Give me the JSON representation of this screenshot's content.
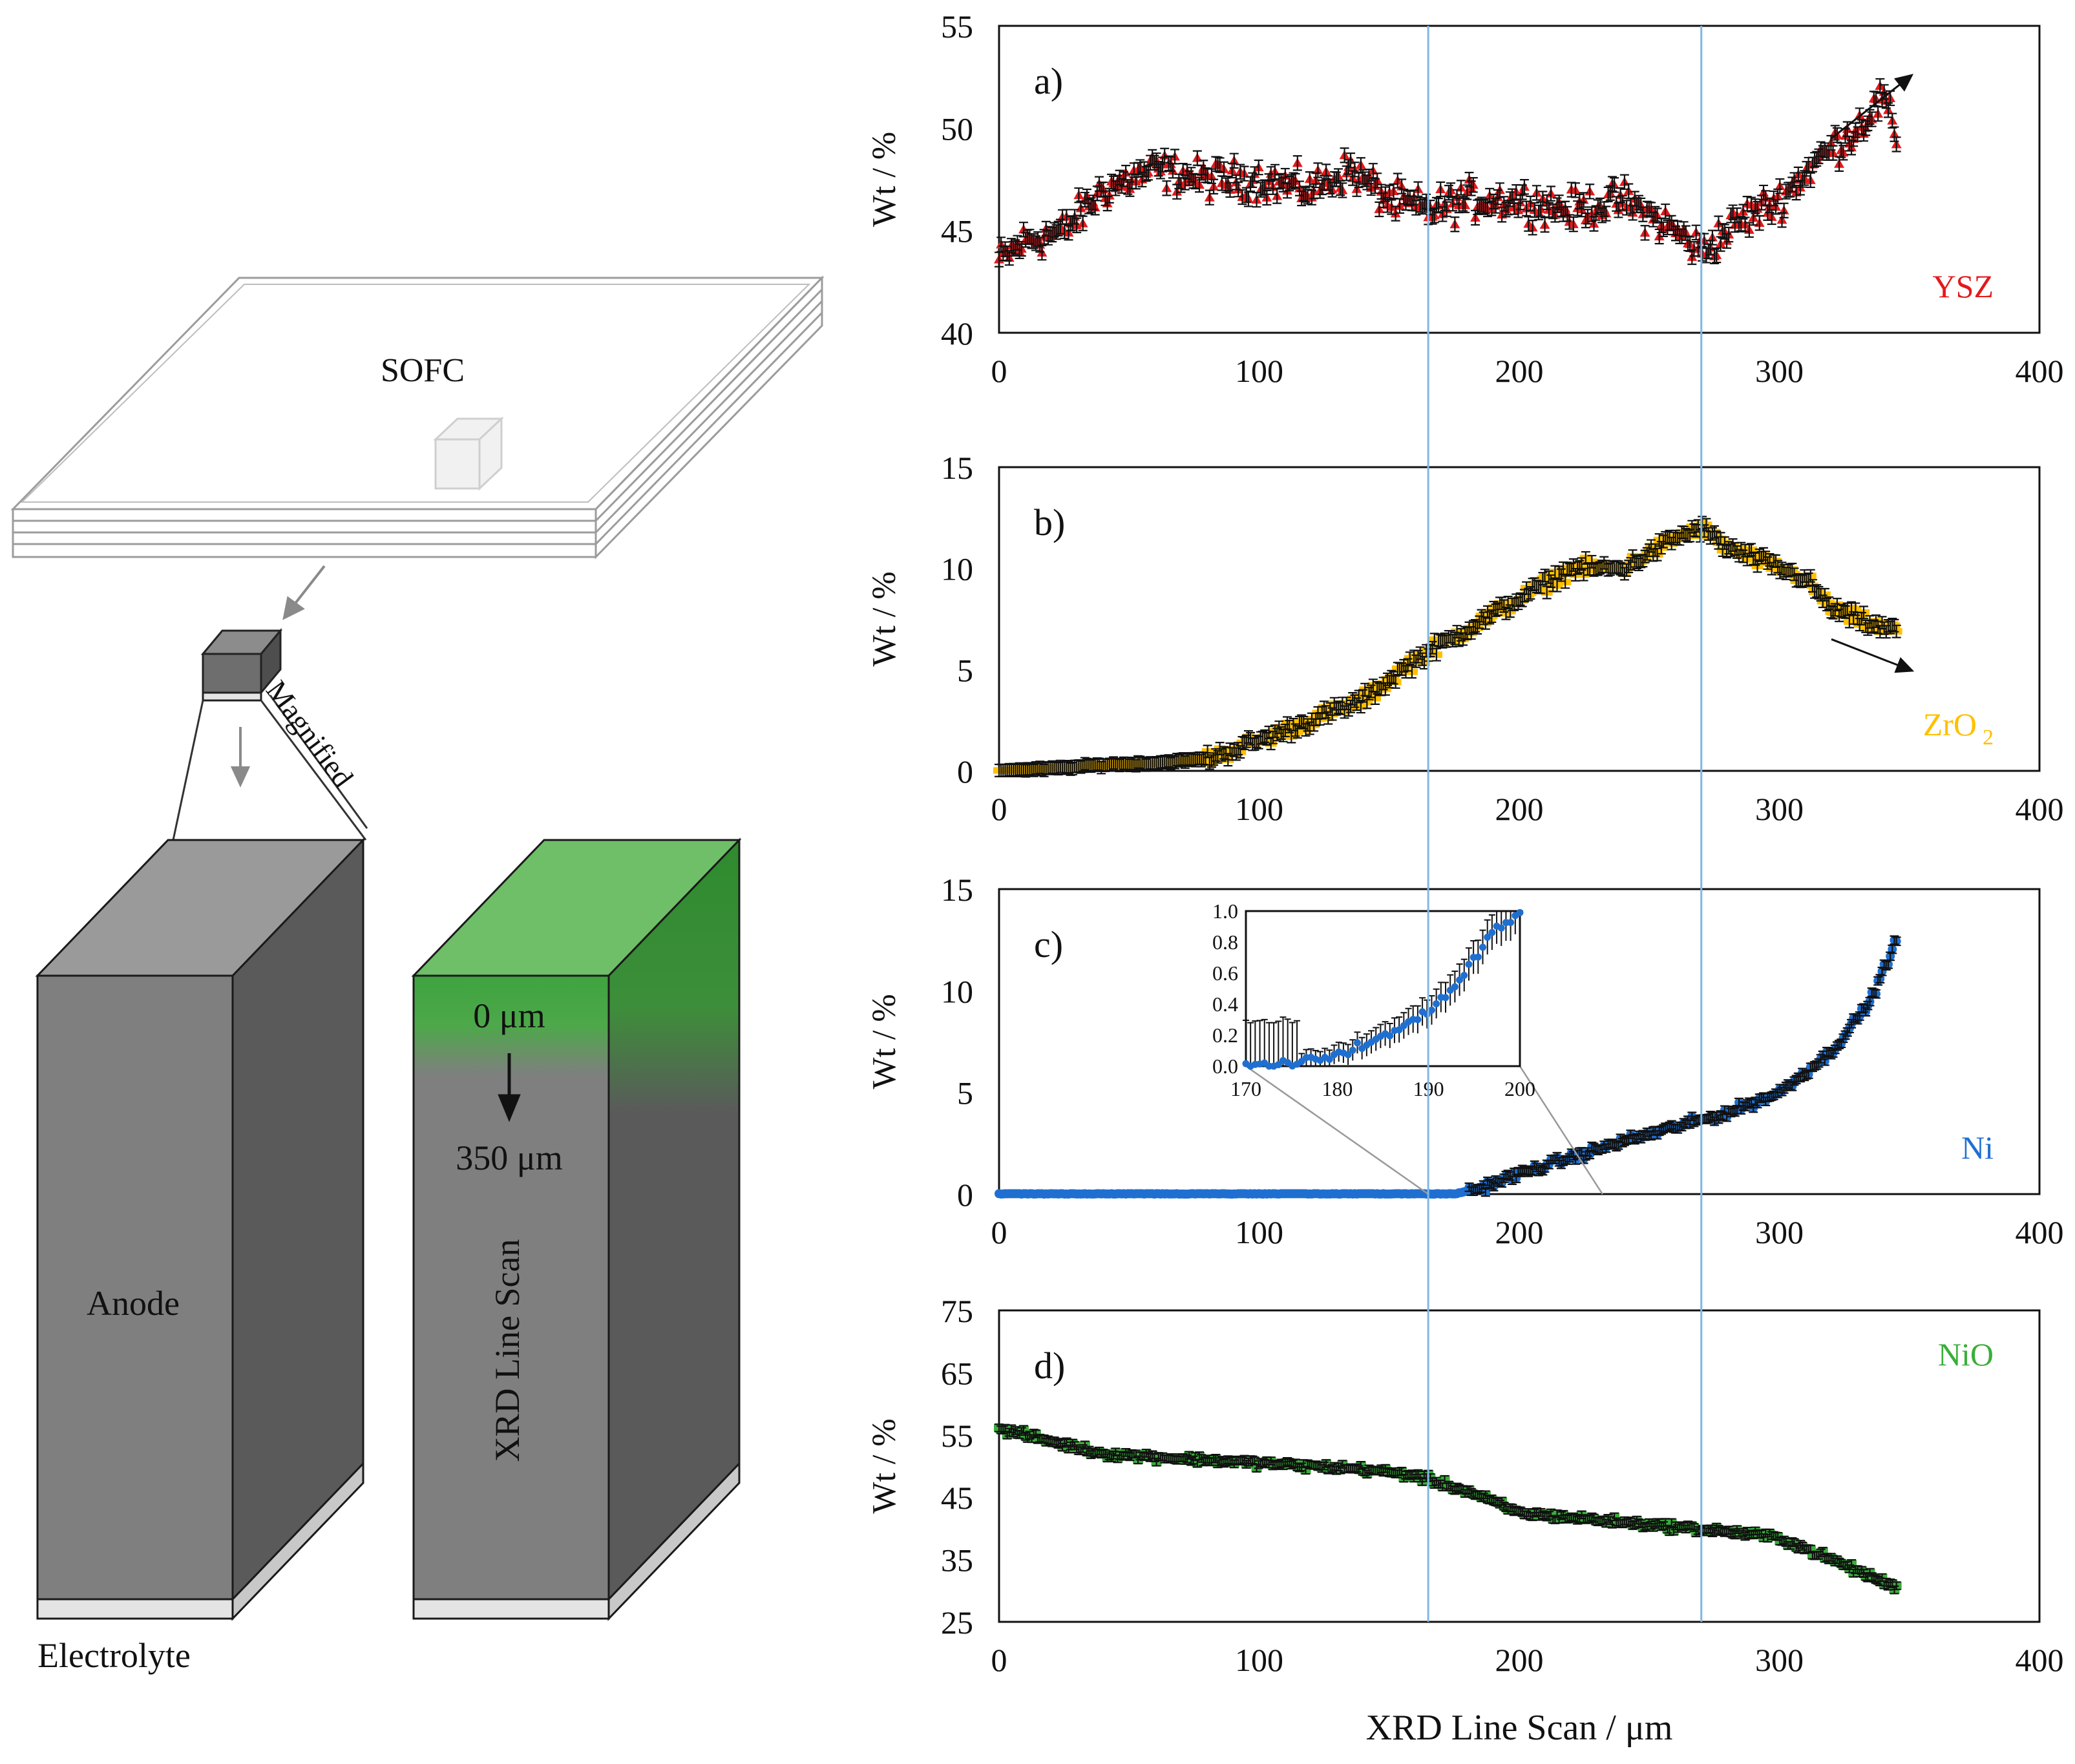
{
  "colors": {
    "ysz": "#e31a1c",
    "zro2": "#ffc000",
    "ni": "#1f6fd1",
    "nio": "#3aae3a",
    "guide": "#7fb7e6",
    "anode_front": "#7f7f7f",
    "anode_side": "#5a5a5a",
    "anode_top": "#9a9a9a",
    "scan_top": "#6fbf68",
    "scan_side": "#2e8b2e"
  },
  "schematic": {
    "sofc_label": "SOFC",
    "magnified_label": "Magnified",
    "anode_label": "Anode",
    "electrolyte_label": "Electrolyte",
    "scan_start": "0 μm",
    "scan_end": "350 μm",
    "scan_label": "XRD Line Scan"
  },
  "figure": {
    "xlabel": "XRD Line Scan / μm",
    "ylabel": "Wt / %"
  },
  "chart_data": [
    {
      "type": "scatter",
      "panel": "a)",
      "title": "YSZ",
      "series_label": "YSZ",
      "color_key": "ysz",
      "xlabel": "",
      "ylabel": "Wt / %",
      "xlim": [
        0,
        400
      ],
      "ylim": [
        40,
        55
      ],
      "xticks": [
        0,
        100,
        200,
        300,
        400
      ],
      "yticks": [
        40,
        45,
        50,
        55
      ],
      "trend_x": [
        0,
        10,
        25,
        40,
        60,
        80,
        100,
        120,
        135,
        150,
        165,
        180,
        200,
        220,
        240,
        260,
        270,
        285,
        300,
        315,
        330,
        340,
        345
      ],
      "trend_y": [
        43.5,
        44.5,
        45.0,
        47.0,
        48.0,
        47.5,
        47.5,
        47.0,
        48.0,
        46.5,
        46.0,
        46.5,
        46.5,
        46.0,
        46.5,
        45.0,
        44.0,
        45.5,
        46.5,
        48.5,
        50.0,
        51.5,
        49.5
      ],
      "spread": 1.3,
      "error": 0.35,
      "x_end": 345,
      "arrow": "up"
    },
    {
      "type": "scatter",
      "panel": "b)",
      "title": "ZrO2",
      "series_label": "ZrO",
      "series_label_sub": "2",
      "color_key": "zro2",
      "xlabel": "",
      "ylabel": "Wt / %",
      "xlim": [
        0,
        400
      ],
      "ylim": [
        0,
        15
      ],
      "xticks": [
        0,
        100,
        200,
        300,
        400
      ],
      "yticks": [
        0,
        5,
        10,
        15
      ],
      "trend_x": [
        0,
        20,
        40,
        60,
        80,
        100,
        120,
        140,
        160,
        180,
        200,
        220,
        240,
        260,
        270,
        280,
        300,
        310,
        320,
        340,
        345
      ],
      "trend_y": [
        0.0,
        0.1,
        0.3,
        0.4,
        0.6,
        1.5,
        2.5,
        3.5,
        5.5,
        7.0,
        8.5,
        10.0,
        10.0,
        11.5,
        12.0,
        11.0,
        10.0,
        9.5,
        8.0,
        7.0,
        7.0
      ],
      "spread": 0.6,
      "error": 0.3,
      "x_end": 345,
      "arrow": "down"
    },
    {
      "type": "scatter",
      "panel": "c)",
      "title": "Ni",
      "series_label": "Ni",
      "color_key": "ni",
      "xlabel": "",
      "ylabel": "Wt / %",
      "xlim": [
        0,
        400
      ],
      "ylim": [
        0,
        15
      ],
      "xticks": [
        0,
        100,
        200,
        300,
        400
      ],
      "yticks": [
        0,
        5,
        10,
        15
      ],
      "trend_x": [
        0,
        100,
        175,
        185,
        200,
        220,
        240,
        260,
        280,
        300,
        320,
        335,
        345
      ],
      "trend_y": [
        0.0,
        0.0,
        0.0,
        0.3,
        1.0,
        1.8,
        2.6,
        3.3,
        4.0,
        5.0,
        7.0,
        9.5,
        12.5
      ],
      "spread": 0.35,
      "error": 0.2,
      "x_end": 345,
      "inset": {
        "xlim": [
          170,
          200
        ],
        "ylim": [
          0.0,
          1.0
        ],
        "xticks": [
          170,
          180,
          190,
          200
        ],
        "yticks": [
          0.0,
          0.2,
          0.4,
          0.6,
          0.8,
          1.0
        ],
        "ytick_labels": [
          "0.0",
          "0.2",
          "0.4",
          "0.6",
          "0.8",
          "1.0"
        ],
        "trend_x": [
          170,
          176,
          180,
          185,
          190,
          194,
          197,
          200
        ],
        "trend_y": [
          0.0,
          0.02,
          0.08,
          0.18,
          0.35,
          0.6,
          0.88,
          0.98
        ]
      }
    },
    {
      "type": "scatter",
      "panel": "d)",
      "title": "NiO",
      "series_label": "NiO",
      "color_key": "nio",
      "xlabel": "XRD Line Scan / μm",
      "ylabel": "Wt / %",
      "xlim": [
        0,
        400
      ],
      "ylim": [
        25,
        75
      ],
      "xticks": [
        0,
        100,
        200,
        300,
        400
      ],
      "yticks": [
        25,
        35,
        45,
        55,
        65,
        75
      ],
      "trend_x": [
        0,
        20,
        40,
        60,
        100,
        140,
        160,
        180,
        200,
        240,
        280,
        300,
        320,
        345
      ],
      "trend_y": [
        56.0,
        54.0,
        52.0,
        51.5,
        50.5,
        49.5,
        48.5,
        46.0,
        42.5,
        41.0,
        39.5,
        38.5,
        35.0,
        30.5
      ],
      "spread": 1.0,
      "error": 0.6,
      "x_end": 345
    }
  ]
}
